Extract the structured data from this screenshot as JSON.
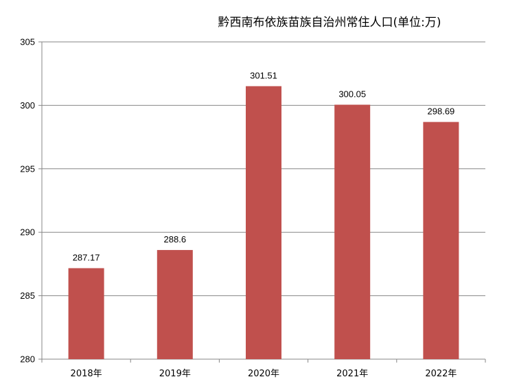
{
  "chart_data": {
    "type": "bar",
    "title": "黔西南布依族苗族自治州常住人口(单位:万)",
    "categories": [
      "2018年",
      "2019年",
      "2020年",
      "2021年",
      "2022年"
    ],
    "values": [
      287.17,
      288.6,
      301.51,
      300.05,
      298.69
    ],
    "data_labels": [
      "287.17",
      "288.6",
      "301.51",
      "300.05",
      "298.69"
    ],
    "y_ticks": [
      "280",
      "285",
      "290",
      "295",
      "300",
      "305"
    ],
    "ylim": [
      280,
      305
    ],
    "grid": true,
    "legend": "none",
    "bar_color": "#C0504D",
    "xlabel": "",
    "ylabel": ""
  }
}
